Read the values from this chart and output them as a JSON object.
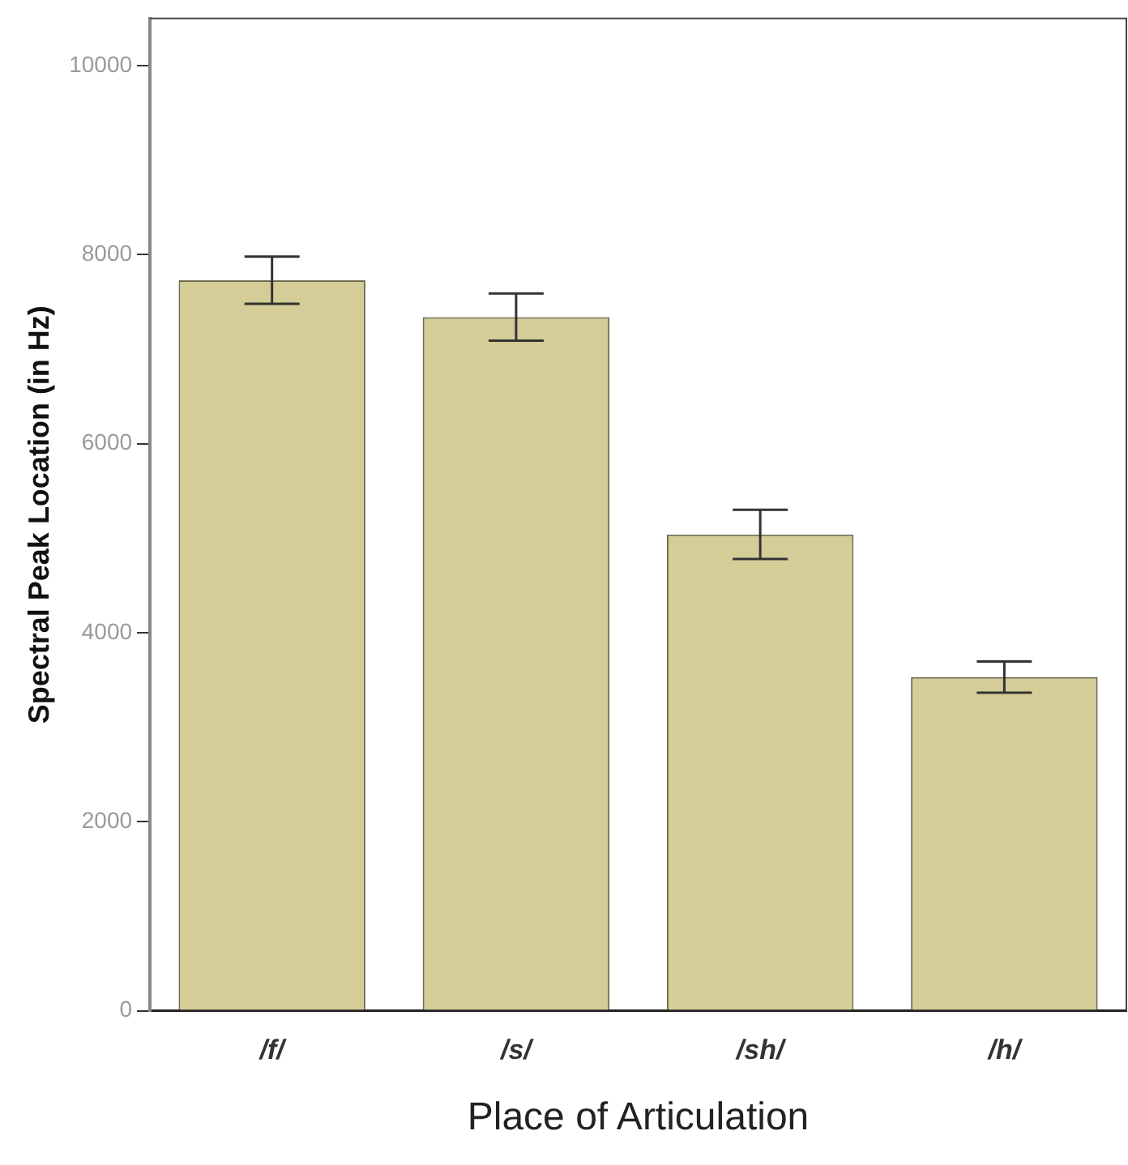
{
  "chart_data": {
    "type": "bar",
    "xlabel": "Place of Articulation",
    "ylabel": "Spectral Peak Location (in Hz)",
    "categories": [
      "/f/",
      "/s/",
      "/sh/",
      "/h/"
    ],
    "values": [
      7730,
      7340,
      5040,
      3530
    ],
    "errors": [
      250,
      250,
      260,
      165
    ],
    "color": "#d4cd98",
    "ylim": [
      0,
      10500
    ],
    "yticks": [
      0,
      2000,
      4000,
      6000,
      8000,
      10000
    ],
    "grid": false,
    "legend": false
  }
}
